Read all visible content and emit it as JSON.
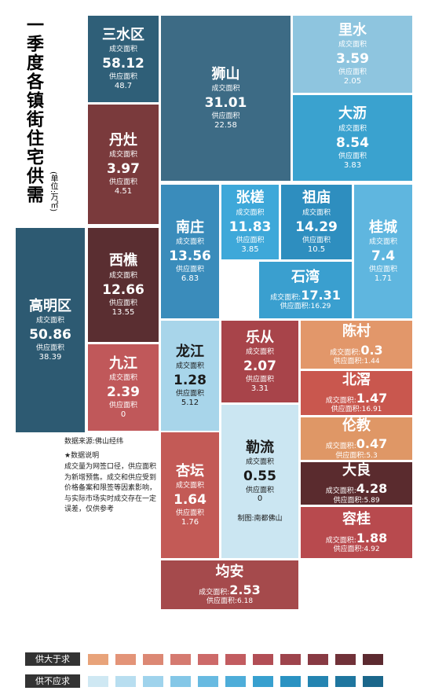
{
  "title": "一季度各镇街住宅供需",
  "unit": "(单位:万㎡)",
  "labels": {
    "deal": "成交面积",
    "supply": "供应面积",
    "deal_inline": "成交面积:",
    "supply_inline": "供应面积:"
  },
  "tiles": [
    {
      "name": "三水区",
      "deal": 58.12,
      "supply": 48.7,
      "color": "#2f5f78"
    },
    {
      "name": "狮山",
      "deal": 31.01,
      "supply": 22.58,
      "color": "#3d6b85"
    },
    {
      "name": "里水",
      "deal": 3.59,
      "supply": 2.05,
      "color": "#8ec5df"
    },
    {
      "name": "大沥",
      "deal": 8.54,
      "supply": 3.83,
      "color": "#3aa2cf"
    },
    {
      "name": "丹灶",
      "deal": 3.97,
      "supply": 4.51,
      "color": "#7a3a3c"
    },
    {
      "name": "南庄",
      "deal": 13.56,
      "supply": 6.83,
      "color": "#3a8cbb"
    },
    {
      "name": "张槎",
      "deal": 11.83,
      "supply": 3.85,
      "color": "#3ea8d9"
    },
    {
      "name": "祖庙",
      "deal": 14.29,
      "supply": 10.5,
      "color": "#2e8ebf"
    },
    {
      "name": "桂城",
      "deal": 7.4,
      "supply": 1.71,
      "color": "#5fb6df"
    },
    {
      "name": "石湾",
      "deal": 17.31,
      "supply": 16.29,
      "color": "#3a9fcf"
    },
    {
      "name": "高明区",
      "deal": 50.86,
      "supply": 38.39,
      "color": "#2d5a72"
    },
    {
      "name": "西樵",
      "deal": 12.66,
      "supply": 13.55,
      "color": "#5a2e31"
    },
    {
      "name": "九江",
      "deal": 2.39,
      "supply": 0,
      "color": "#c0585a"
    },
    {
      "name": "龙江",
      "deal": 1.28,
      "supply": 5.12,
      "color": "#a8d5ea"
    },
    {
      "name": "乐从",
      "deal": 2.07,
      "supply": 3.31,
      "color": "#a8444a"
    },
    {
      "name": "陈村",
      "deal": 0.3,
      "supply": 1.44,
      "color": "#e2976a"
    },
    {
      "name": "北滘",
      "deal": 1.47,
      "supply": 16.91,
      "color": "#c9574e"
    },
    {
      "name": "伦教",
      "deal": 0.47,
      "supply": 5.3,
      "color": "#df9766"
    },
    {
      "name": "大良",
      "deal": 4.28,
      "supply": 5.89,
      "color": "#5a2b2e"
    },
    {
      "name": "容桂",
      "deal": 1.88,
      "supply": 4.92,
      "color": "#b84a4e"
    },
    {
      "name": "勒流",
      "deal": 0.55,
      "supply": 0,
      "color": "#cbe6f2"
    },
    {
      "name": "杏坛",
      "deal": 1.64,
      "supply": 1.76,
      "color": "#c35a56"
    },
    {
      "name": "均安",
      "deal": 2.53,
      "supply": 6.18,
      "color": "#a54a4c"
    }
  ],
  "source": "数据来源:佛山经纬",
  "note_title": "★数据说明",
  "note": "成交量为网签口径，供应面积为新增预售。成交和供应受到价格备案和限签等因素影响，与实际市场实时成交存在一定误差，仅供参考",
  "credit": "制图:南都佛山",
  "legend": [
    {
      "label": "供大于求",
      "colors": [
        "#e8a37a",
        "#e39478",
        "#dc8874",
        "#d57a70",
        "#cd6a69",
        "#c25c60",
        "#b24e55",
        "#9e444c",
        "#883a43",
        "#713239",
        "#5c2a30"
      ]
    },
    {
      "label": "供不应求",
      "colors": [
        "#cfe8f3",
        "#b8def0",
        "#9fd3ec",
        "#84c7e7",
        "#68bae1",
        "#4eadd9",
        "#38a0cf",
        "#2a92c2",
        "#2484b1",
        "#1f769f",
        "#1b678b"
      ]
    }
  ]
}
